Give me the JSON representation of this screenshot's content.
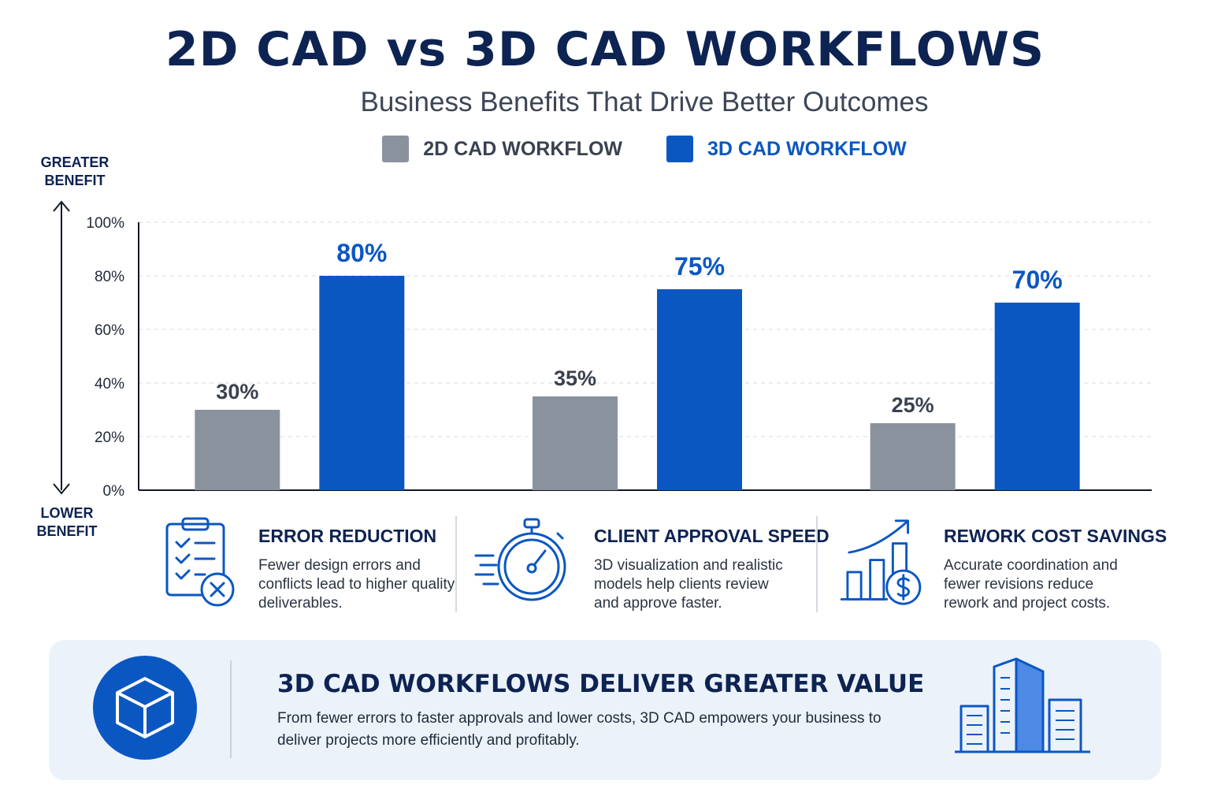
{
  "title": "2D CAD vs 3D CAD WORKFLOWS",
  "subtitle": "Business Benefits That Drive Better Outcomes",
  "legend": [
    {
      "label": "2D CAD WORKFLOW",
      "color": "#8a929d"
    },
    {
      "label": "3D CAD WORKFLOW",
      "color": "#0b57c2"
    }
  ],
  "axis_caps": {
    "top": "GREATER BENEFIT",
    "bottom": "LOWER BENEFIT"
  },
  "colors": {
    "series_2d": "#8a929d",
    "series_3d": "#0b57c2",
    "label_2d": "#3a4150",
    "label_3d": "#0b57c2"
  },
  "chart_data": {
    "type": "bar",
    "categories": [
      "ERROR REDUCTION",
      "CLIENT APPROVAL SPEED",
      "REWORK COST SAVINGS"
    ],
    "series": [
      {
        "name": "2D CAD WORKFLOW",
        "values": [
          30,
          35,
          25
        ],
        "labels": [
          "30%",
          "35%",
          "25%"
        ]
      },
      {
        "name": "3D CAD WORKFLOW",
        "values": [
          80,
          75,
          70
        ],
        "labels": [
          "80%",
          "75%",
          "70%"
        ]
      }
    ],
    "ylim": [
      0,
      100
    ],
    "yticks": [
      "0%",
      "20%",
      "40%",
      "60%",
      "80%",
      "100%"
    ],
    "grid": true,
    "legend_position": "top"
  },
  "benefits": [
    {
      "title": "ERROR REDUCTION",
      "desc": "Fewer design errors and conflicts lead to higher quality deliverables.",
      "icon": "checklist-icon"
    },
    {
      "title": "CLIENT APPROVAL SPEED",
      "desc": "3D visualization and realistic models help clients review and approve faster.",
      "icon": "stopwatch-icon"
    },
    {
      "title": "REWORK COST SAVINGS",
      "desc": "Accurate coordination and fewer revisions reduce rework and project costs.",
      "icon": "cost-savings-icon"
    }
  ],
  "banner": {
    "title": "3D CAD WORKFLOWS DELIVER GREATER VALUE",
    "text": "From fewer errors to faster approvals and lower costs, 3D CAD empowers your business to deliver projects more efficiently and profitably.",
    "left_icon": "cube-icon",
    "right_icon": "buildings-icon"
  }
}
